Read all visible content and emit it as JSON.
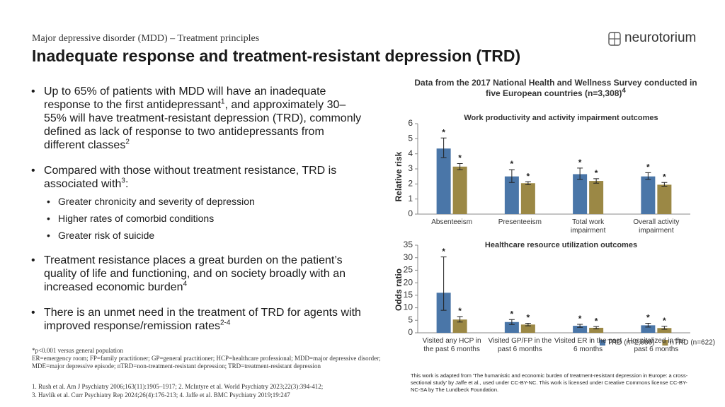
{
  "header": {
    "subtitle": "Major depressive disorder (MDD) – Treatment principles",
    "title": "Inadequate response and treatment-resistant depression (TRD)",
    "logo": "neurotorium"
  },
  "bullets": [
    {
      "runs": [
        {
          "text": "Up to 65% of patients with MDD will have an inadequate response to the first antidepressant"
        },
        {
          "sup": "1"
        },
        {
          "text": ", and approximately 30–55% will have treatment-resistant depression (TRD), commonly defined as lack of response to two antidepressants from different classes"
        },
        {
          "sup": "2"
        }
      ]
    },
    {
      "runs": [
        {
          "text": "Compared with those without treatment resistance, TRD is associated with"
        },
        {
          "sup": "3"
        },
        {
          "text": ":"
        }
      ],
      "sub": [
        "Greater chronicity and severity of depression",
        "Higher rates of comorbid conditions",
        "Greater risk of suicide"
      ]
    },
    {
      "runs": [
        {
          "text": "Treatment resistance places a great burden on the patient’s quality of life and functioning, and on society broadly with an increased economic burden"
        },
        {
          "sup": "4"
        }
      ]
    },
    {
      "runs": [
        {
          "text": "There is an unmet need in the treatment of TRD for agents with improved response/remission rates"
        },
        {
          "sup": "2-4"
        }
      ]
    }
  ],
  "footnotes": {
    "significance": "*p<0.001 versus general population",
    "abbreviations": "ER=emergency room; FP=family practitioner; GP=general practitioner; HCP=healthcare professional; MDD=major depressive disorder; MDE=major depressive episode; nTRD=non-treatment-resistant depression; TRD=treatment-resistant depression",
    "references": [
      "1. Rush et al. Am J Psychiatry 2006;163(11):1905–1917; 2. McIntyre et al. World Psychiatry 2023;22(3):394-412;",
      "3. Havlík et al. Curr Psychiatry Rep 2024;26(4):176-213; 4. Jaffe et al. BMC Psychiatry 2019;19:247"
    ]
  },
  "survey_title": "Data from the 2017 National Health and Wellness Survey conducted in five European countries (n=3,308)",
  "survey_title_ref": "4",
  "credit": "This work is adapted from 'The humanistic and economic burden of treatment-resistant depression in Europe: a cross-sectional study' by Jaffe et al., used under CC-BY-NC. This work is licensed under Creative Commons license CC-BY-NC-SA by The Lundbeck Foundation.",
  "chart_data": [
    {
      "type": "bar",
      "title": "Work productivity and activity impairment outcomes",
      "y_label": "Relative risk",
      "significance_mark": "*",
      "categories": [
        "Absenteeism",
        "Presenteeism",
        "Total work impairment",
        "Overall activity impairment"
      ],
      "series": [
        {
          "color": "#4a76a8",
          "values": [
            4.35,
            2.5,
            2.65,
            2.5
          ],
          "ci": [
            [
              3.75,
              5.05
            ],
            [
              2.1,
              2.95
            ],
            [
              2.3,
              3.05
            ],
            [
              2.3,
              2.75
            ]
          ]
        },
        {
          "color": "#9b8845",
          "values": [
            3.15,
            2.05,
            2.2,
            1.95
          ],
          "ci": [
            [
              2.95,
              3.35
            ],
            [
              1.95,
              2.15
            ],
            [
              2.05,
              2.35
            ],
            [
              1.85,
              2.1
            ]
          ]
        }
      ],
      "ylim": [
        0,
        6
      ],
      "yticks": [
        0,
        1,
        2,
        3,
        4,
        5,
        6
      ]
    },
    {
      "type": "bar",
      "title": "Healthcare resource utilization outcomes",
      "y_label": "Odds ratio",
      "significance_mark": "*",
      "legend": "bottom-right",
      "categories": [
        "Visited any HCP in the past 6 months",
        "Visited GP/FP in the past 6 months",
        "Visited ER in the past 6 months",
        "Hospitalized in the past 6 months"
      ],
      "series": [
        {
          "name": "TRD (n=2,686)",
          "color": "#4a76a8",
          "values": [
            16,
            4.3,
            2.8,
            3.0
          ],
          "ci": [
            [
              9,
              30.3
            ],
            [
              3.3,
              5.3
            ],
            [
              2.2,
              3.4
            ],
            [
              2.3,
              3.8
            ]
          ]
        },
        {
          "name": "nTRD (n=622)",
          "color": "#9b8845",
          "values": [
            5.3,
            3.3,
            2.0,
            1.9
          ],
          "ci": [
            [
              4.3,
              6.5
            ],
            [
              2.8,
              3.8
            ],
            [
              1.6,
              2.5
            ],
            [
              1.4,
              2.6
            ]
          ]
        }
      ],
      "ylim": [
        0,
        35
      ],
      "yticks": [
        0,
        5,
        10,
        15,
        20,
        25,
        30,
        35
      ]
    }
  ]
}
